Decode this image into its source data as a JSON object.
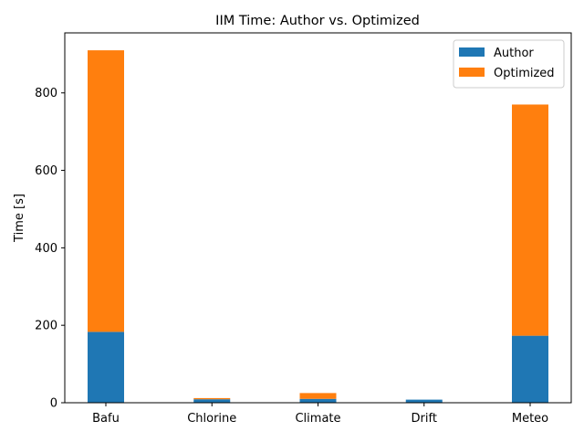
{
  "chart_data": {
    "type": "bar",
    "stacked": true,
    "title": "IIM Time: Author vs. Optimized",
    "xlabel": "",
    "ylabel": "Time [s]",
    "categories": [
      "Bafu",
      "Chlorine",
      "Climate",
      "Drift",
      "Meteo"
    ],
    "series": [
      {
        "name": "Author",
        "color": "#1f77b4",
        "values": [
          183,
          9,
          10,
          8,
          173
        ]
      },
      {
        "name": "Optimized",
        "color": "#ff7f0e",
        "values": [
          727,
          3,
          15,
          0,
          597
        ]
      }
    ],
    "ylim": [
      0,
      955
    ],
    "yticks": [
      0,
      200,
      400,
      600,
      800
    ],
    "grid": false,
    "legend": {
      "position": "top-right"
    }
  }
}
